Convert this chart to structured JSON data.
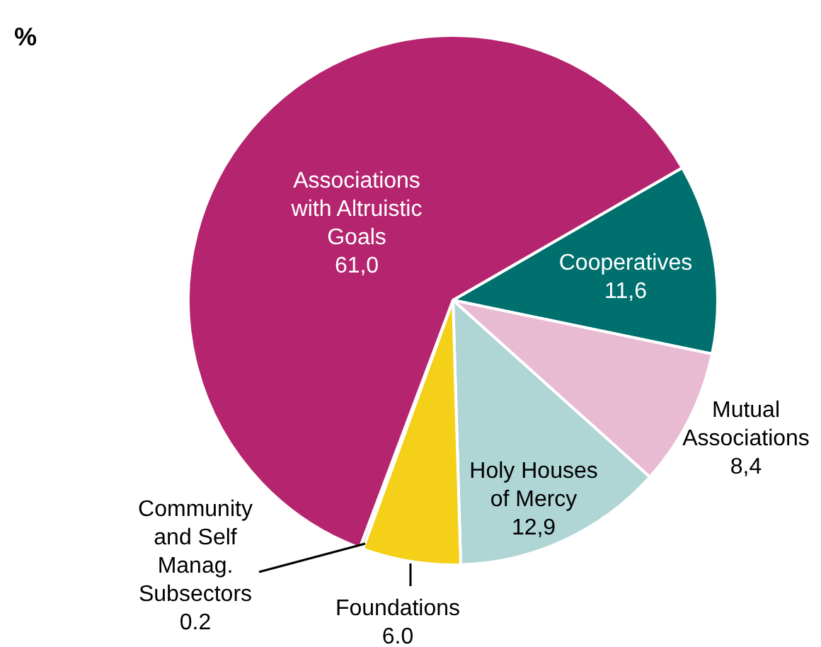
{
  "chart_data": {
    "type": "pie",
    "title": "%",
    "categories": [
      "Cooperatives",
      "Mutual Associations",
      "Holy Houses of Mercy",
      "Foundations",
      "Community and Self Manag. Subsectors",
      "Associations with Altruistic Goals"
    ],
    "values": [
      11.6,
      8.4,
      12.9,
      6.0,
      0.2,
      61.0
    ],
    "value_labels": [
      "11,6",
      "8,4",
      "12,9",
      "6.0",
      "0.2",
      "61,0"
    ],
    "colors": [
      "#00706e",
      "#e8bbd3",
      "#b0d5d5",
      "#f5d018",
      "#7aa0c8",
      "#b5246e"
    ],
    "legend": false
  }
}
